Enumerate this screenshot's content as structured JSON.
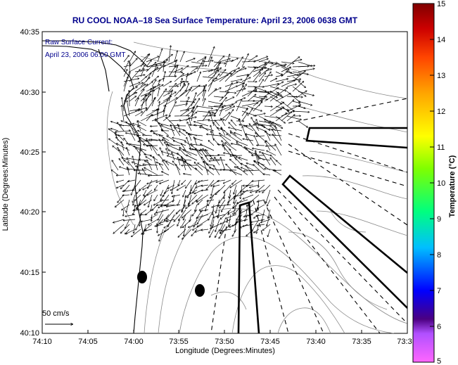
{
  "title": "RU COOL  NOAA–18  Sea Surface Temperature:  April 23, 2006 0638 GMT",
  "annotation": {
    "line1": "Raw Surface Current:",
    "line2": "April 23, 2006 06:00 GMT"
  },
  "scale_label": "50 cm/s",
  "map": {
    "xlabel": "Longitude (Degrees:Minutes)",
    "ylabel": "Latitude (Degrees:Minutes)",
    "x_ticks": [
      "74:10",
      "74:05",
      "74:00",
      "73:55",
      "73:50",
      "73:45",
      "73:40",
      "73:35",
      "73:3"
    ],
    "y_ticks": [
      "40:35",
      "40:30",
      "40:25",
      "40:20",
      "40:15",
      "40:10"
    ]
  },
  "colorbar": {
    "label": "Temperature (°C)",
    "ticks": [
      "15",
      "14",
      "13",
      "12",
      "11",
      "10",
      "9",
      "8",
      "7",
      "6",
      "5"
    ],
    "range": [
      5,
      15
    ],
    "colors": [
      "#ff66ff",
      "#4b0082",
      "#0000ff",
      "#00bfff",
      "#00ff7f",
      "#7fff00",
      "#ffff00",
      "#ffa500",
      "#ff4500",
      "#b22222",
      "#800000"
    ]
  }
}
